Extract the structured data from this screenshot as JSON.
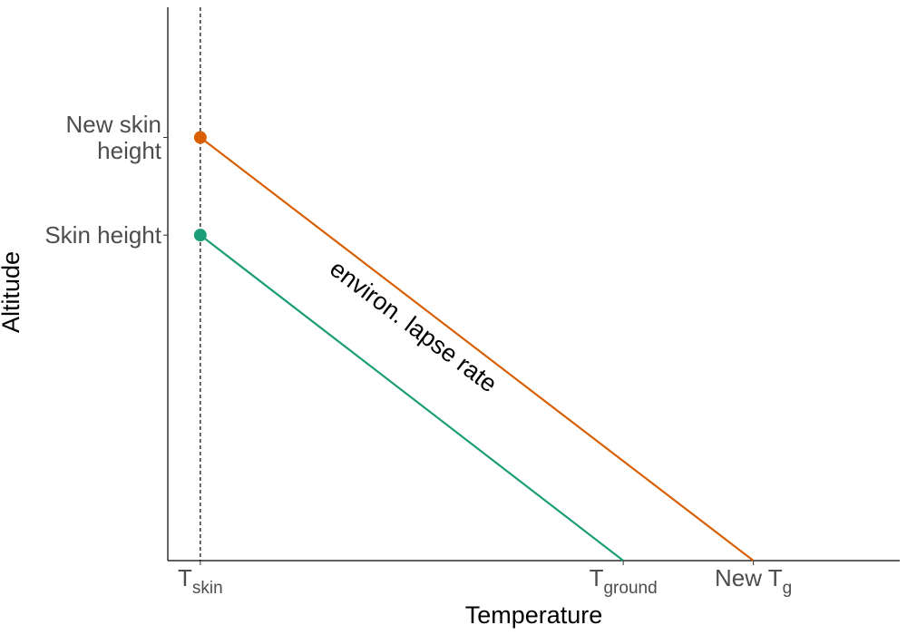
{
  "chart_data": {
    "type": "line",
    "xlabel": "Temperature",
    "ylabel": "Altitude",
    "grid": false,
    "legend": "none",
    "x_ticks": [
      {
        "value": 0,
        "main": "T",
        "sub": "skin"
      },
      {
        "value": 13,
        "main": "T",
        "sub": "ground"
      },
      {
        "value": 17,
        "main": "New T",
        "sub": "g"
      }
    ],
    "y_ticks": [
      {
        "value": 10,
        "lines": [
          "Skin height"
        ]
      },
      {
        "value": 13,
        "lines": [
          "New skin",
          "height"
        ]
      }
    ],
    "xlim": [
      -1,
      21.5
    ],
    "ylim": [
      0,
      17
    ],
    "reference_line": {
      "axis": "x",
      "value": 0,
      "style": "dashed",
      "color": "#000000"
    },
    "series": [
      {
        "color": "#1b9e77",
        "x": [
          0,
          13
        ],
        "y": [
          10,
          0
        ]
      },
      {
        "color": "#d95f02",
        "x": [
          0,
          17
        ],
        "y": [
          13,
          0
        ]
      }
    ],
    "points": [
      {
        "x": 0,
        "y": 10,
        "color": "#1b9e77"
      },
      {
        "x": 0,
        "y": 13,
        "color": "#d95f02"
      }
    ],
    "annotation": {
      "text": "environ. lapse rate",
      "x": 6.4,
      "y": 7.0,
      "rotation": 37
    }
  }
}
